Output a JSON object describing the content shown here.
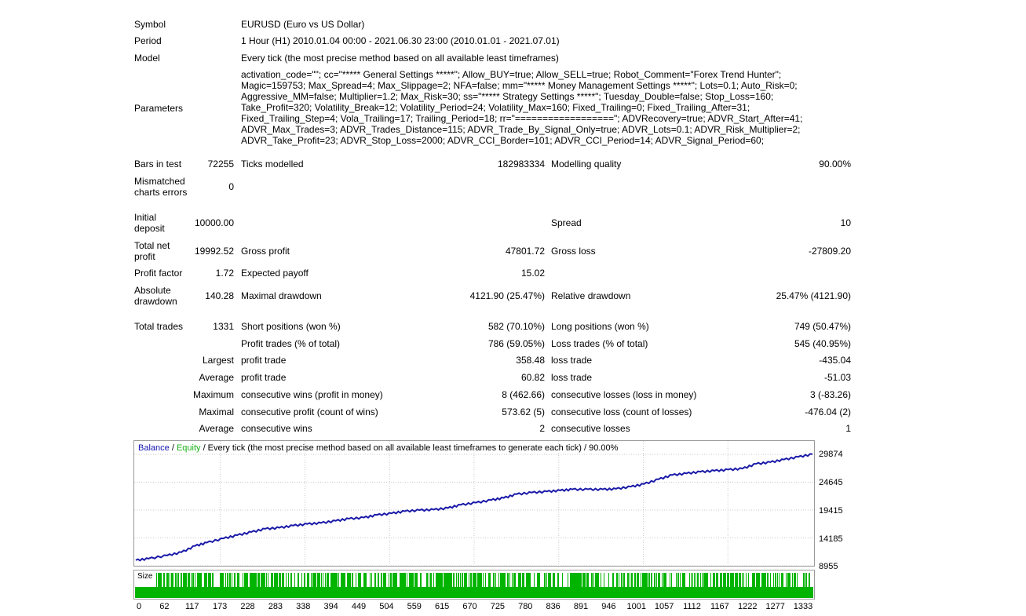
{
  "report": {
    "symbol_label": "Symbol",
    "symbol_value": "EURUSD (Euro vs US Dollar)",
    "period_label": "Period",
    "period_value": "1 Hour (H1) 2010.01.04 00:00 - 2021.06.30 23:00 (2010.01.01 - 2021.07.01)",
    "model_label": "Model",
    "model_value": "Every tick (the most precise method based on all available least timeframes)",
    "parameters_label": "Parameters",
    "parameters_lines": [
      "activation_code=\"\"; cc=\"***** General Settings *****\"; Allow_BUY=true; Allow_SELL=true; Robot_Comment=\"Forex Trend Hunter\";",
      "Magic=159753; Max_Spread=4; Max_Slippage=2; NFA=false; mm=\"***** Money Management Settings *****\"; Lots=0.1; Auto_Risk=0;",
      "Aggressive_MM=false; Multiplier=1.2; Max_Risk=30; ss=\"***** Strategy Settings *****\"; Tuesday_Double=false; Stop_Loss=160;",
      "Take_Profit=320; Volatility_Break=12; Volatility_Period=24; Volatility_Max=160; Fixed_Trailing=0; Fixed_Trailing_After=31;",
      "Fixed_Trailing_Step=4; Vola_Trailing=17; Trailing_Period=18; rr=\"==================\"; ADVRecovery=true; ADVR_Start_After=41;",
      "ADVR_Max_Trades=3; ADVR_Trades_Distance=115; ADVR_Trade_By_Signal_Only=true; ADVR_Lots=0.1; ADVR_Risk_Multiplier=2;",
      "ADVR_Take_Profit=23; ADVR_Stop_Loss=2000; ADVR_CCI_Border=101; ADVR_CCI_Period=14; ADVR_Signal_Period=60;"
    ],
    "bars_label": "Bars in test",
    "bars_value": "72255",
    "ticks_label": "Ticks modelled",
    "ticks_value": "182983334",
    "quality_label": "Modelling quality",
    "quality_value": "90.00%",
    "mismatched_label_1": "Mismatched",
    "mismatched_label_2": "charts errors",
    "mismatched_value": "0",
    "initial_label_1": "Initial",
    "initial_label_2": "deposit",
    "initial_value": "10000.00",
    "spread_label": "Spread",
    "spread_value": "10",
    "netprofit_label_1": "Total net",
    "netprofit_label_2": "profit",
    "netprofit_value": "19992.52",
    "grossprofit_label": "Gross profit",
    "grossprofit_value": "47801.72",
    "grossloss_label": "Gross loss",
    "grossloss_value": "-27809.20",
    "pf_label": "Profit factor",
    "pf_value": "1.72",
    "payoff_label": "Expected payoff",
    "payoff_value": "15.02",
    "absdd_label_1": "Absolute",
    "absdd_label_2": "drawdown",
    "absdd_value": "140.28",
    "maxdd_label": "Maximal drawdown",
    "maxdd_value": "4121.90 (25.47%)",
    "reldd_label": "Relative drawdown",
    "reldd_value": "25.47% (4121.90)",
    "trades_label": "Total trades",
    "trades_value": "1331",
    "short_label": "Short positions (won %)",
    "short_value": "582 (70.10%)",
    "long_label": "Long positions (won %)",
    "long_value": "749 (50.47%)",
    "profit_trades_label": "Profit trades (% of total)",
    "profit_trades_value": "786 (59.05%)",
    "loss_trades_label": "Loss trades (% of total)",
    "loss_trades_value": "545 (40.95%)",
    "largest_label": "Largest",
    "largest_profit_label": "profit trade",
    "largest_profit_value": "358.48",
    "largest_loss_label": "loss trade",
    "largest_loss_value": "-435.04",
    "average_label": "Average",
    "average_profit_label": "profit trade",
    "average_profit_value": "60.82",
    "average_loss_label": "loss trade",
    "average_loss_value": "-51.03",
    "maximum_label": "Maximum",
    "maxwins_label": "consecutive wins (profit in money)",
    "maxwins_value": "8 (462.66)",
    "maxlosses_label": "consecutive losses (loss in money)",
    "maxlosses_value": "3 (-83.26)",
    "maximal_label": "Maximal",
    "maxprofit_label": "consecutive profit (count of wins)",
    "maxprofit_value": "573.62 (5)",
    "maxloss_label": "consecutive loss (count of losses)",
    "maxloss_value": "-476.04 (2)",
    "average2_label": "Average",
    "avgwins_label": "consecutive wins",
    "avgwins_value": "2",
    "avglosses_label": "consecutive losses",
    "avglosses_value": "1"
  },
  "chart_data": {
    "type": "line",
    "title": "",
    "legend": {
      "balance": "Balance",
      "sep1": " / ",
      "equity": "Equity",
      "rest": " / Every tick (the most precise method based on all available least timeframes to generate each tick) / 90.00%"
    },
    "xlabel": "",
    "ylabel": "",
    "colors": {
      "balance": "#1a1aa8",
      "equity": "#18b018",
      "size_bars": "#00b400"
    },
    "y_ticks": [
      "29874",
      "24645",
      "19415",
      "14185",
      "8955"
    ],
    "y_tick_values": [
      29874,
      24645,
      19415,
      14185,
      8955
    ],
    "ylim": [
      8955,
      31000
    ],
    "x_ticks": [
      "0",
      "62",
      "117",
      "173",
      "228",
      "283",
      "338",
      "394",
      "449",
      "504",
      "559",
      "615",
      "670",
      "725",
      "780",
      "836",
      "891",
      "946",
      "1001",
      "1057",
      "1112",
      "1167",
      "1222",
      "1277",
      "1333"
    ],
    "xlim": [
      0,
      1333
    ],
    "size_label": "Size",
    "series": [
      {
        "name": "Balance",
        "x": [
          0,
          25,
          62,
          90,
          117,
          140,
          173,
          200,
          228,
          255,
          283,
          310,
          338,
          365,
          394,
          420,
          449,
          475,
          504,
          530,
          559,
          587,
          615,
          640,
          670,
          700,
          725,
          750,
          780,
          810,
          836,
          860,
          891,
          920,
          946,
          975,
          1001,
          1030,
          1057,
          1085,
          1112,
          1140,
          1167,
          1195,
          1222,
          1250,
          1277,
          1305,
          1333
        ],
        "values": [
          10000,
          10300,
          10900,
          11500,
          12700,
          13300,
          14100,
          14700,
          15300,
          15900,
          16100,
          16500,
          16800,
          17000,
          17400,
          17800,
          18000,
          18500,
          18800,
          19200,
          19400,
          19500,
          19800,
          20400,
          20800,
          21300,
          21700,
          22400,
          22700,
          22900,
          23100,
          23300,
          23300,
          23300,
          23400,
          23800,
          24300,
          25200,
          26000,
          26300,
          26600,
          26800,
          27000,
          27200,
          28100,
          28400,
          28900,
          29400,
          29900
        ]
      }
    ]
  }
}
